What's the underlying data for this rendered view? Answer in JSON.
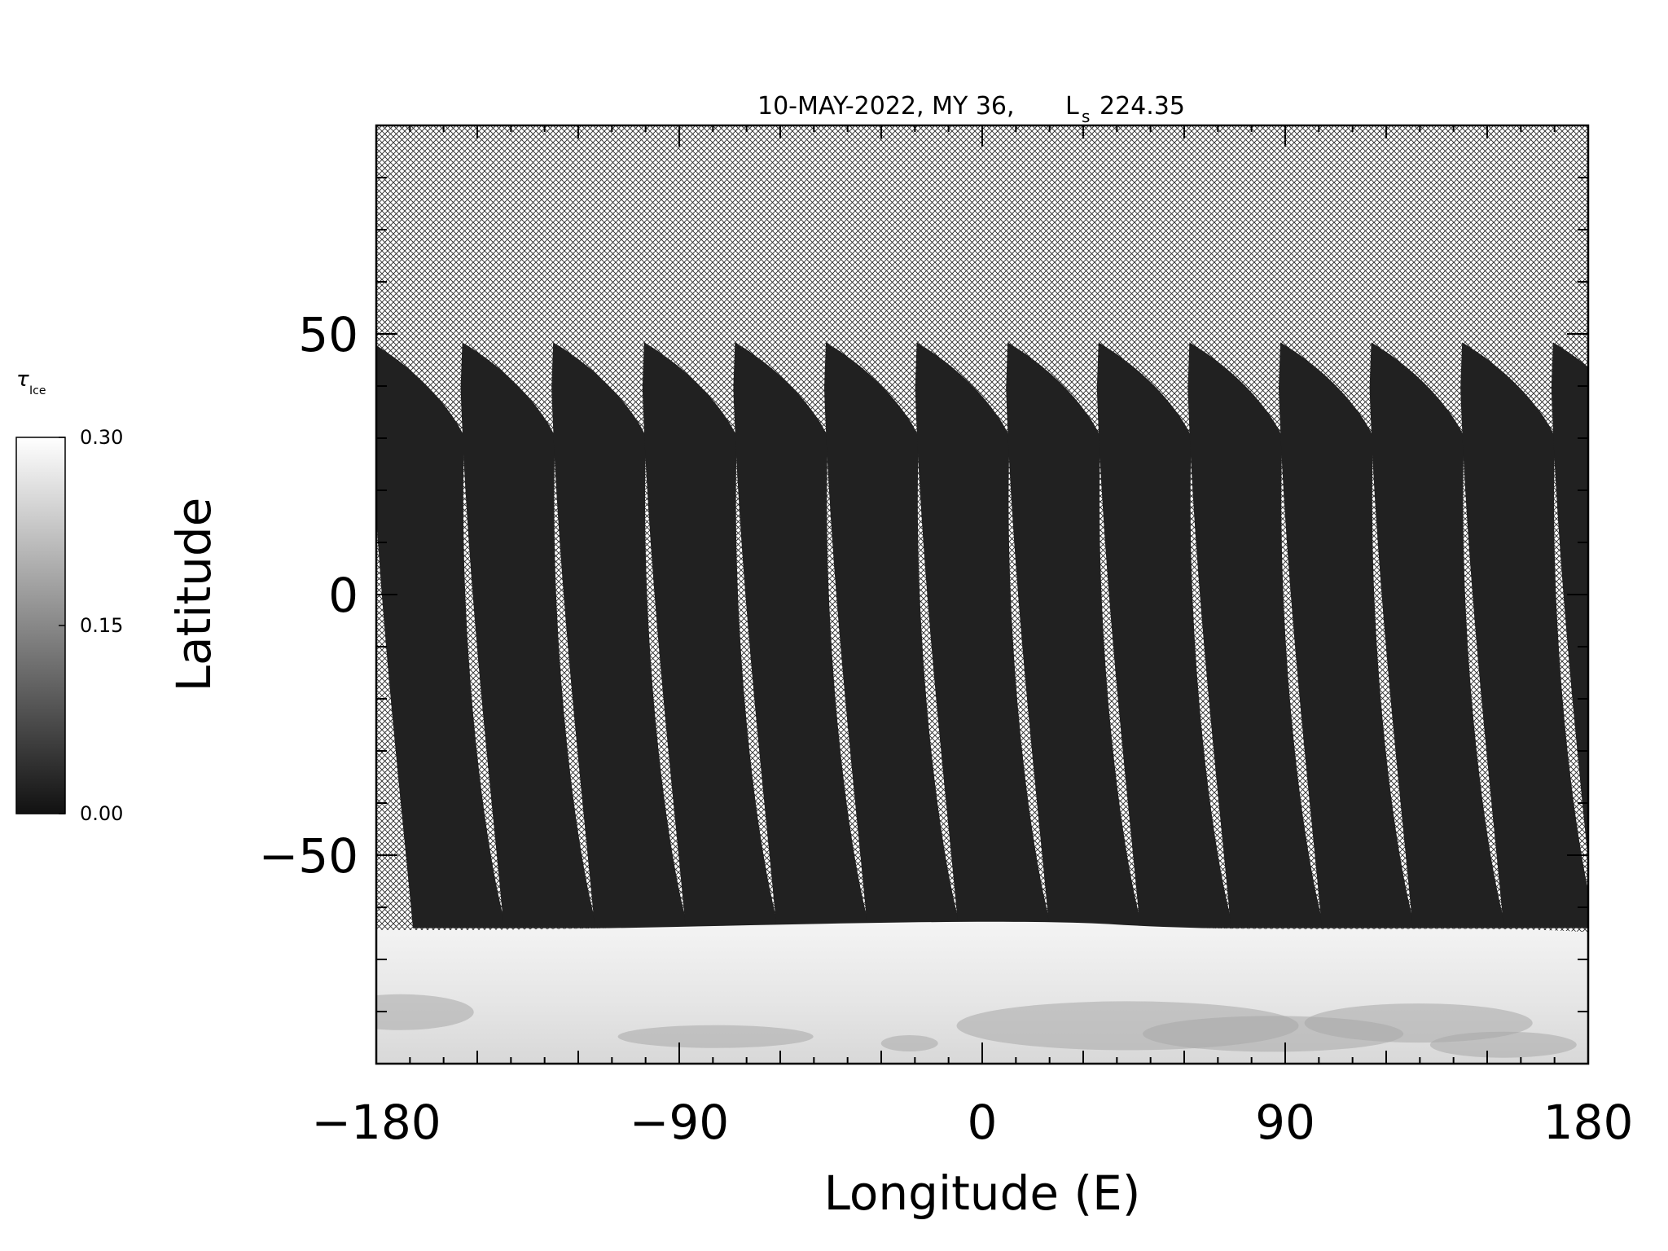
{
  "chart_data": {
    "type": "heatmap",
    "title": "10-MAY-2022, MY 36,",
    "title_ls_symbol": "L",
    "title_ls_subscript": "s",
    "title_ls_value": "224.35",
    "xlabel": "Longitude (E)",
    "ylabel": "Latitude",
    "xlim": [
      -180,
      180
    ],
    "ylim": [
      -90,
      90
    ],
    "x_major_ticks": [
      -180,
      -90,
      0,
      90,
      180
    ],
    "x_tick_labels": [
      "−180",
      "−90",
      "0",
      "90",
      "180"
    ],
    "y_major_ticks": [
      -50,
      0,
      50
    ],
    "y_tick_labels": [
      "−50",
      "0",
      "50"
    ],
    "grid": false,
    "missing_data_pattern": "crosshatch",
    "colorbar": {
      "label_symbol": "τ",
      "label_subscript": "Ice",
      "min": 0.0,
      "max": 0.3,
      "tick_values": [
        0.0,
        0.15,
        0.3
      ],
      "tick_labels": [
        "0.00",
        "0.15",
        "0.30"
      ],
      "colormap": "grayscale"
    },
    "swaths": {
      "count": 14,
      "first_top_longitude": -180,
      "spacing_deg": 27.0,
      "top_latitude": 49,
      "southern_edge_latitude": -64
    },
    "polar_cloud_region": {
      "latitude_from": -90,
      "latitude_to": -64,
      "typical_value": 0.3
    },
    "typical_swath_value": 0.02
  }
}
